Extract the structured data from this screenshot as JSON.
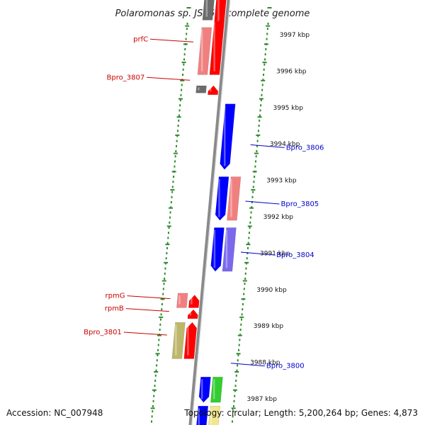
{
  "title": "Polaromonas sp. JS666, complete genome",
  "footer": {
    "accession": "Accession: NC_007948",
    "summary": "Topology: circular; Length: 5,200,264 bp; Genes: 4,873"
  },
  "colors": {
    "ruler": "#2e8b2e",
    "backbone": "#8a8a8a",
    "label_left": "#cc0000",
    "label_right": "#0000cc"
  },
  "kbp_ticks": [
    {
      "kbp": 3997,
      "label": "3997 kbp"
    },
    {
      "kbp": 3996,
      "label": "3996 kbp"
    },
    {
      "kbp": 3995,
      "label": "3995 kbp"
    },
    {
      "kbp": 3994,
      "label": "3994 kbp"
    },
    {
      "kbp": 3993,
      "label": "3993 kbp"
    },
    {
      "kbp": 3992,
      "label": "3992 kbp"
    },
    {
      "kbp": 3991,
      "label": "3991 kbp"
    },
    {
      "kbp": 3990,
      "label": "3990 kbp"
    },
    {
      "kbp": 3989,
      "label": "3989 kbp"
    },
    {
      "kbp": 3988,
      "label": "3988 kbp"
    },
    {
      "kbp": 3987,
      "label": "3987 kbp"
    }
  ],
  "genes": [
    {
      "lane": 1,
      "start": 3998.6,
      "end": 3997.4,
      "dir": "up",
      "color": "#6b6b6b"
    },
    {
      "lane": 2,
      "start": 3998.6,
      "end": 3997.2,
      "dir": "up",
      "color": "#ff0000"
    },
    {
      "lane": 1,
      "start": 3997.2,
      "end": 3995.9,
      "dir": "none",
      "color": "#f08080"
    },
    {
      "lane": 2,
      "start": 3995.9,
      "end": 3997.4,
      "dir": "up",
      "color": "#ff0000"
    },
    {
      "lane": 1,
      "start": 3995.6,
      "end": 3995.4,
      "dir": "none",
      "color": "#6b6b6b"
    },
    {
      "lane": 2,
      "start": 3995.35,
      "end": 3995.6,
      "dir": "up",
      "color": "#ff0000"
    },
    {
      "lane": 3,
      "start": 3995.1,
      "end": 3993.3,
      "dir": "down",
      "color": "#0000ff"
    },
    {
      "lane": 3,
      "start": 3993.1,
      "end": 3991.9,
      "dir": "down",
      "color": "#0000ff"
    },
    {
      "lane": 4,
      "start": 3993.1,
      "end": 3991.9,
      "dir": "none",
      "color": "#f08080"
    },
    {
      "lane": 3,
      "start": 3991.7,
      "end": 3990.5,
      "dir": "down",
      "color": "#0000ff"
    },
    {
      "lane": 4,
      "start": 3991.7,
      "end": 3990.5,
      "dir": "none",
      "color": "#7b68ee"
    },
    {
      "lane": 1,
      "start": 3989.9,
      "end": 3989.5,
      "dir": "none",
      "color": "#f08080"
    },
    {
      "lane": 2,
      "start": 3989.5,
      "end": 3989.85,
      "dir": "up",
      "color": "#ff0000"
    },
    {
      "lane": 2,
      "start": 3989.2,
      "end": 3989.45,
      "dir": "up",
      "color": "#ff0000"
    },
    {
      "lane": 1,
      "start": 3989.1,
      "end": 3988.1,
      "dir": "none",
      "color": "#bdb76b"
    },
    {
      "lane": 2,
      "start": 3988.1,
      "end": 3989.1,
      "dir": "up",
      "color": "#ff0000"
    },
    {
      "lane": 3,
      "start": 3987.6,
      "end": 3986.9,
      "dir": "down",
      "color": "#0000ff"
    },
    {
      "lane": 4,
      "start": 3987.6,
      "end": 3986.9,
      "dir": "none",
      "color": "#32cd32"
    },
    {
      "lane": 3,
      "start": 3986.8,
      "end": 3985.8,
      "dir": "down",
      "color": "#0000ff"
    },
    {
      "lane": 4,
      "start": 3986.8,
      "end": 3985.8,
      "dir": "none",
      "color": "#f0e68c"
    }
  ],
  "labels": [
    {
      "text": "prfC",
      "side": "left",
      "kbp": 3996.8
    },
    {
      "text": "Bpro_3807",
      "side": "left",
      "kbp": 3995.75
    },
    {
      "text": "Bpro_3806",
      "side": "right",
      "kbp": 3993.9
    },
    {
      "text": "Bpro_3805",
      "side": "right",
      "kbp": 3992.35
    },
    {
      "text": "Bpro_3804",
      "side": "right",
      "kbp": 3990.95
    },
    {
      "text": "rpmG",
      "side": "left",
      "kbp": 3989.75
    },
    {
      "text": "rpmB",
      "side": "left",
      "kbp": 3989.4
    },
    {
      "text": "Bpro_3801",
      "side": "left",
      "kbp": 3988.75
    },
    {
      "text": "Bpro_3800",
      "side": "right",
      "kbp": 3987.9
    }
  ]
}
